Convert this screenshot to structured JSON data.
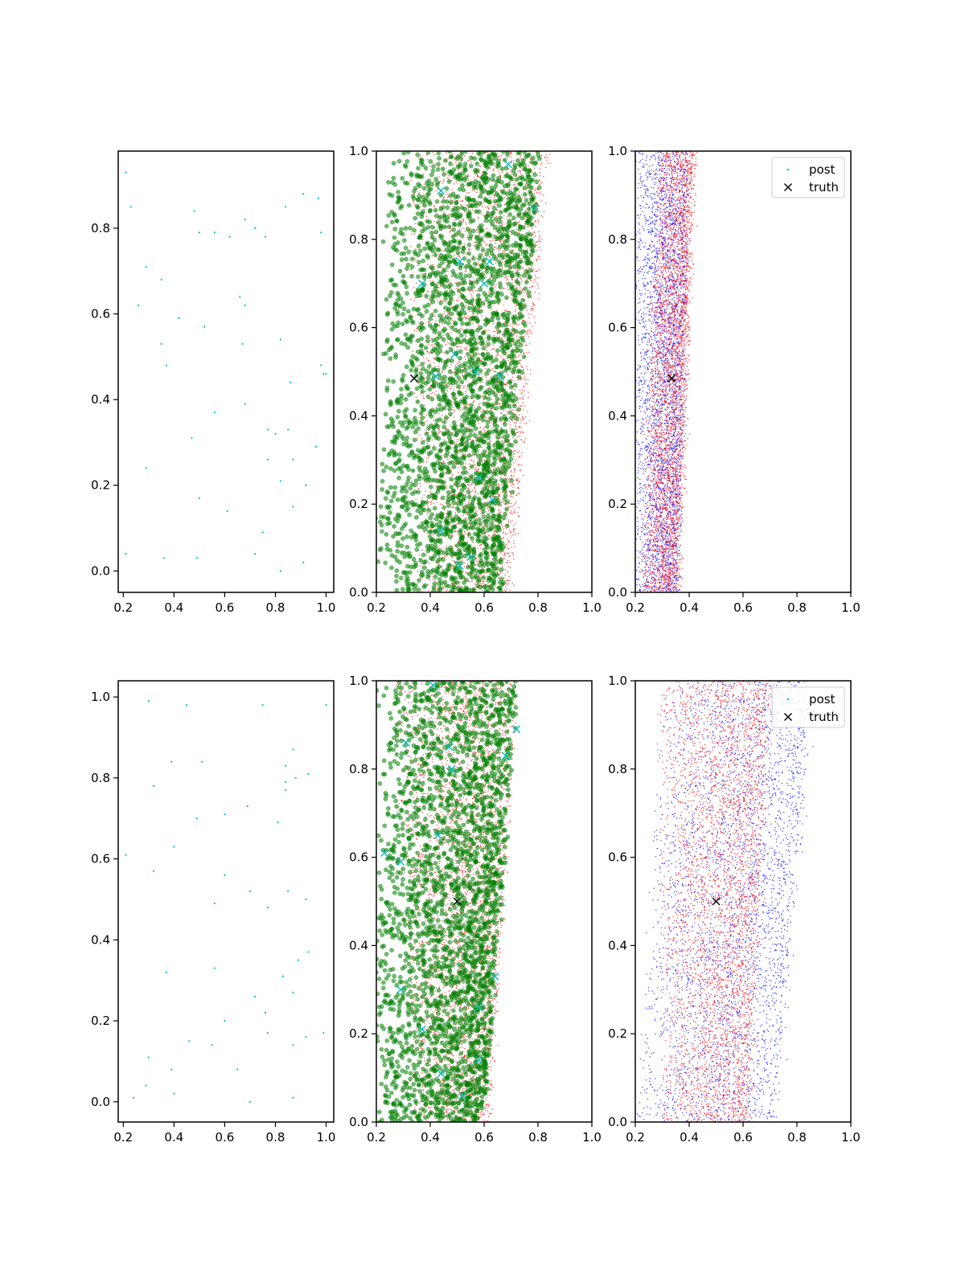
{
  "figure": {
    "rows": 2,
    "columns": 3,
    "legend_placement": "upper right"
  },
  "colors": {
    "background": "#ffffff",
    "axes": "#000000",
    "cyan": "#00bfbf",
    "green": "#008000",
    "red": "#ff0000",
    "blue": "#0000ff",
    "truth": "#000000"
  },
  "legend": {
    "items": [
      {
        "label": "post",
        "marker": "dot",
        "color": "#00bfbf"
      },
      {
        "label": "truth",
        "marker": "x",
        "color": "#000000"
      }
    ]
  },
  "chart_data": [
    {
      "type": "scatter",
      "panel": "row1-col1",
      "xlim": [
        0.18,
        1.03
      ],
      "ylim": [
        -0.05,
        0.98
      ],
      "xticks": [
        "0.2",
        "0.4",
        "0.6",
        "0.8",
        "1.0"
      ],
      "yticks": [
        "0.0",
        "0.2",
        "0.4",
        "0.6",
        "0.8"
      ],
      "grid": false,
      "series": [
        {
          "marker": "dot",
          "color": "#00bfbf",
          "points": [
            [
              0.21,
              0.93
            ],
            [
              0.23,
              0.85
            ],
            [
              0.48,
              0.84
            ],
            [
              0.5,
              0.79
            ],
            [
              0.56,
              0.79
            ],
            [
              0.62,
              0.78
            ],
            [
              0.68,
              0.82
            ],
            [
              0.72,
              0.8
            ],
            [
              0.76,
              0.78
            ],
            [
              0.84,
              0.85
            ],
            [
              0.91,
              0.88
            ],
            [
              0.97,
              0.87
            ],
            [
              0.98,
              0.79
            ],
            [
              0.29,
              0.71
            ],
            [
              0.35,
              0.68
            ],
            [
              0.26,
              0.62
            ],
            [
              0.42,
              0.59
            ],
            [
              0.52,
              0.57
            ],
            [
              0.66,
              0.64
            ],
            [
              0.68,
              0.62
            ],
            [
              0.35,
              0.53
            ],
            [
              0.37,
              0.48
            ],
            [
              0.67,
              0.53
            ],
            [
              0.82,
              0.54
            ],
            [
              0.86,
              0.44
            ],
            [
              0.98,
              0.48
            ],
            [
              0.99,
              0.46
            ],
            [
              1.0,
              0.46
            ],
            [
              0.68,
              0.39
            ],
            [
              0.56,
              0.37
            ],
            [
              0.47,
              0.31
            ],
            [
              0.77,
              0.33
            ],
            [
              0.8,
              0.32
            ],
            [
              0.85,
              0.33
            ],
            [
              0.96,
              0.29
            ],
            [
              0.29,
              0.24
            ],
            [
              0.77,
              0.26
            ],
            [
              0.87,
              0.26
            ],
            [
              0.82,
              0.21
            ],
            [
              0.92,
              0.2
            ],
            [
              0.5,
              0.17
            ],
            [
              0.61,
              0.14
            ],
            [
              0.87,
              0.15
            ],
            [
              0.75,
              0.09
            ],
            [
              0.21,
              0.04
            ],
            [
              0.36,
              0.03
            ],
            [
              0.49,
              0.03
            ],
            [
              0.72,
              0.04
            ],
            [
              0.82,
              0.0
            ],
            [
              0.91,
              0.02
            ]
          ]
        }
      ]
    },
    {
      "type": "scatter",
      "panel": "row1-col2",
      "xlim": [
        0.2,
        1.0
      ],
      "ylim": [
        0.0,
        1.0
      ],
      "xticks": [
        "0.2",
        "0.4",
        "0.6",
        "0.8",
        "1.0"
      ],
      "yticks": [
        "0.0",
        "0.2",
        "0.4",
        "0.6",
        "0.8",
        "1.0"
      ],
      "grid": false,
      "series": [
        {
          "marker": "dot-small",
          "color": "#ff0000",
          "distribution": "dense band",
          "band": {
            "y_top_xrange": [
              0.32,
              0.84
            ],
            "y_bottom_xrange": [
              0.34,
              0.7
            ]
          }
        },
        {
          "marker": "circle",
          "color": "#008000",
          "distribution": "dense band",
          "band": {
            "y_top_xrange": [
              0.24,
              0.81
            ],
            "y_bottom_xrange": [
              0.2,
              0.66
            ]
          }
        },
        {
          "marker": "x",
          "color": "#00bfbf",
          "points": [
            [
              0.44,
              0.91
            ],
            [
              0.37,
              0.7
            ],
            [
              0.69,
              0.97
            ],
            [
              0.79,
              0.87
            ],
            [
              0.62,
              0.75
            ],
            [
              0.6,
              0.7
            ],
            [
              0.51,
              0.75
            ],
            [
              0.49,
              0.54
            ],
            [
              0.42,
              0.49
            ],
            [
              0.57,
              0.5
            ],
            [
              0.66,
              0.49
            ],
            [
              0.58,
              0.26
            ],
            [
              0.63,
              0.21
            ],
            [
              0.44,
              0.14
            ],
            [
              0.55,
              0.08
            ],
            [
              0.51,
              0.06
            ]
          ]
        },
        {
          "marker": "x",
          "color": "#000000",
          "label": "truth",
          "points": [
            [
              0.34,
              0.485
            ]
          ]
        }
      ]
    },
    {
      "type": "scatter",
      "panel": "row1-col3",
      "xlim": [
        0.2,
        1.0
      ],
      "ylim": [
        0.0,
        1.0
      ],
      "xticks": [
        "0.2",
        "0.4",
        "0.6",
        "0.8",
        "1.0"
      ],
      "yticks": [
        "0.0",
        "0.2",
        "0.4",
        "0.6",
        "0.8",
        "1.0"
      ],
      "grid": false,
      "legend": true,
      "series": [
        {
          "marker": "dot-small",
          "color": "#0000ff",
          "distribution": "dense band",
          "band": {
            "y_top_xrange": [
              0.2,
              0.4
            ],
            "y_bottom_xrange": [
              0.2,
              0.36
            ]
          }
        },
        {
          "marker": "dot-small",
          "color": "#ff0000",
          "distribution": "dense band",
          "band": {
            "y_top_xrange": [
              0.28,
              0.42
            ],
            "y_bottom_xrange": [
              0.22,
              0.36
            ]
          }
        },
        {
          "marker": "x",
          "color": "#000000",
          "label": "truth",
          "points": [
            [
              0.335,
              0.485
            ]
          ]
        }
      ]
    },
    {
      "type": "scatter",
      "panel": "row2-col1",
      "xlim": [
        0.18,
        1.03
      ],
      "ylim": [
        -0.05,
        1.04
      ],
      "xticks": [
        "0.2",
        "0.4",
        "0.6",
        "0.8",
        "1.0"
      ],
      "yticks": [
        "0.0",
        "0.2",
        "0.4",
        "0.6",
        "0.8",
        "1.0"
      ],
      "grid": false,
      "series": [
        {
          "marker": "dot",
          "color": "#00bfbf",
          "points": [
            [
              0.3,
              0.99
            ],
            [
              0.45,
              0.98
            ],
            [
              0.75,
              0.98
            ],
            [
              1.0,
              0.98
            ],
            [
              0.39,
              0.84
            ],
            [
              0.51,
              0.84
            ],
            [
              0.84,
              0.83
            ],
            [
              0.87,
              0.87
            ],
            [
              0.32,
              0.78
            ],
            [
              0.84,
              0.79
            ],
            [
              0.84,
              0.77
            ],
            [
              0.88,
              0.8
            ],
            [
              0.93,
              0.81
            ],
            [
              0.49,
              0.7
            ],
            [
              0.6,
              0.71
            ],
            [
              0.69,
              0.73
            ],
            [
              0.81,
              0.69
            ],
            [
              0.21,
              0.61
            ],
            [
              0.4,
              0.63
            ],
            [
              0.32,
              0.57
            ],
            [
              0.6,
              0.56
            ],
            [
              0.56,
              0.49
            ],
            [
              0.7,
              0.52
            ],
            [
              0.77,
              0.48
            ],
            [
              0.85,
              0.52
            ],
            [
              0.92,
              0.5
            ],
            [
              0.37,
              0.32
            ],
            [
              0.56,
              0.33
            ],
            [
              0.72,
              0.26
            ],
            [
              0.83,
              0.31
            ],
            [
              0.87,
              0.27
            ],
            [
              0.89,
              0.35
            ],
            [
              0.93,
              0.37
            ],
            [
              0.6,
              0.2
            ],
            [
              0.76,
              0.22
            ],
            [
              0.46,
              0.15
            ],
            [
              0.55,
              0.14
            ],
            [
              0.77,
              0.17
            ],
            [
              0.87,
              0.14
            ],
            [
              0.92,
              0.16
            ],
            [
              0.99,
              0.17
            ],
            [
              0.3,
              0.11
            ],
            [
              0.39,
              0.08
            ],
            [
              0.65,
              0.08
            ],
            [
              0.29,
              0.04
            ],
            [
              0.24,
              0.01
            ],
            [
              0.4,
              0.02
            ],
            [
              0.7,
              0.0
            ],
            [
              0.87,
              0.01
            ]
          ]
        }
      ]
    },
    {
      "type": "scatter",
      "panel": "row2-col2",
      "xlim": [
        0.2,
        1.0
      ],
      "ylim": [
        0.0,
        1.0
      ],
      "xticks": [
        "0.2",
        "0.4",
        "0.6",
        "0.8",
        "1.0"
      ],
      "yticks": [
        "0.0",
        "0.2",
        "0.4",
        "0.6",
        "0.8",
        "1.0"
      ],
      "grid": false,
      "series": [
        {
          "marker": "dot-small",
          "color": "#ff0000",
          "distribution": "dense band",
          "band": {
            "y_top_xrange": [
              0.26,
              0.72
            ],
            "y_bottom_xrange": [
              0.34,
              0.62
            ]
          }
        },
        {
          "marker": "circle",
          "color": "#008000",
          "distribution": "dense band",
          "band": {
            "y_top_xrange": [
              0.2,
              0.72
            ],
            "y_bottom_xrange": [
              0.2,
              0.6
            ]
          }
        },
        {
          "marker": "x",
          "color": "#00bfbf",
          "points": [
            [
              0.41,
              0.99
            ],
            [
              0.31,
              0.86
            ],
            [
              0.47,
              0.85
            ],
            [
              0.72,
              0.89
            ],
            [
              0.68,
              0.83
            ],
            [
              0.48,
              0.8
            ],
            [
              0.43,
              0.65
            ],
            [
              0.23,
              0.61
            ],
            [
              0.29,
              0.59
            ],
            [
              0.29,
              0.3
            ],
            [
              0.64,
              0.33
            ],
            [
              0.58,
              0.26
            ],
            [
              0.37,
              0.21
            ],
            [
              0.44,
              0.11
            ],
            [
              0.58,
              0.14
            ],
            [
              0.52,
              0.06
            ]
          ]
        },
        {
          "marker": "x",
          "color": "#000000",
          "label": "truth",
          "points": [
            [
              0.5,
              0.5
            ]
          ]
        }
      ]
    },
    {
      "type": "scatter",
      "panel": "row2-col3",
      "xlim": [
        0.2,
        1.0
      ],
      "ylim": [
        0.0,
        1.0
      ],
      "xticks": [
        "0.2",
        "0.4",
        "0.6",
        "0.8",
        "1.0"
      ],
      "yticks": [
        "0.0",
        "0.2",
        "0.4",
        "0.6",
        "0.8",
        "1.0"
      ],
      "grid": false,
      "legend": true,
      "series": [
        {
          "marker": "dot-small",
          "color": "#0000ff",
          "distribution": "dense band",
          "band": {
            "y_top_xrange": [
              0.3,
              0.86
            ],
            "y_bottom_xrange": [
              0.2,
              0.72
            ]
          }
        },
        {
          "marker": "dot-small",
          "color": "#ff0000",
          "distribution": "dense band",
          "band": {
            "y_top_xrange": [
              0.28,
              0.7
            ],
            "y_bottom_xrange": [
              0.3,
              0.62
            ]
          }
        },
        {
          "marker": "x",
          "color": "#000000",
          "label": "truth",
          "points": [
            [
              0.5,
              0.5
            ]
          ]
        }
      ]
    }
  ]
}
